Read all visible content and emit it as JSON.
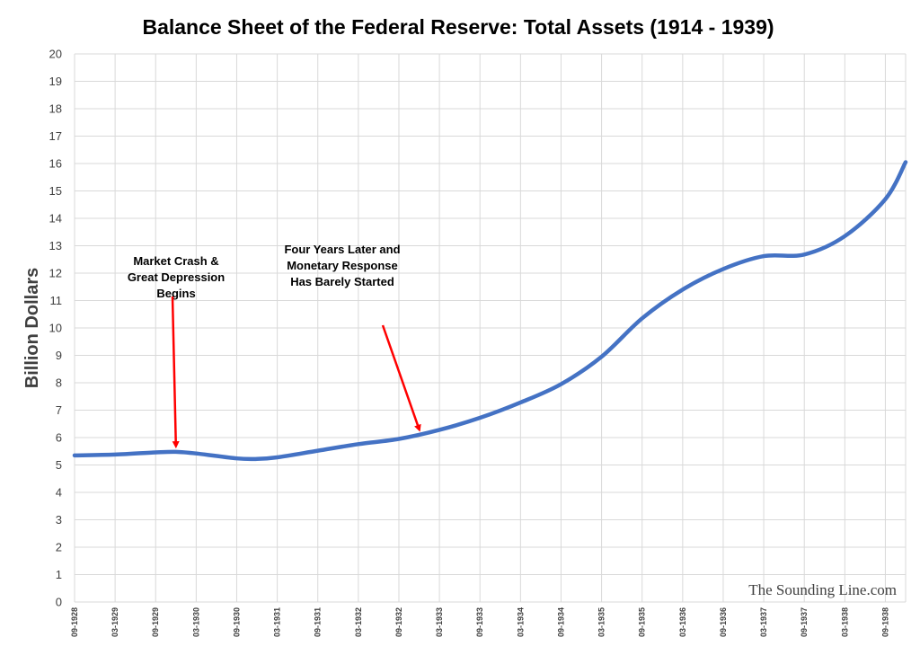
{
  "chart_data": {
    "type": "line",
    "title": "Balance Sheet of the Federal Reserve: Total Assets (1914 - 1939)",
    "xlabel": "",
    "ylabel": "Billion Dollars",
    "ylim": [
      0,
      20
    ],
    "yticks": [
      0,
      1,
      2,
      3,
      4,
      5,
      6,
      7,
      8,
      9,
      10,
      11,
      12,
      13,
      14,
      15,
      16,
      17,
      18,
      19,
      20
    ],
    "grid": true,
    "categories": [
      "09-1928",
      "03-1929",
      "09-1929",
      "03-1930",
      "09-1930",
      "03-1931",
      "09-1931",
      "03-1932",
      "09-1932",
      "03-1933",
      "09-1933",
      "03-1934",
      "09-1934",
      "03-1935",
      "09-1935",
      "03-1936",
      "09-1936",
      "03-1937",
      "09-1937",
      "03-1938",
      "09-1938"
    ],
    "x_end": "12-1938",
    "series": [
      {
        "color": "#4472c4",
        "points": [
          {
            "x": "09-1928",
            "y": 5.35
          },
          {
            "x": "03-1929",
            "y": 5.38
          },
          {
            "x": "09-1929",
            "y": 5.46
          },
          {
            "x": "12-1929",
            "y": 5.48
          },
          {
            "x": "03-1930",
            "y": 5.42
          },
          {
            "x": "09-1930",
            "y": 5.24
          },
          {
            "x": "12-1930",
            "y": 5.22
          },
          {
            "x": "03-1931",
            "y": 5.28
          },
          {
            "x": "09-1931",
            "y": 5.52
          },
          {
            "x": "03-1932",
            "y": 5.76
          },
          {
            "x": "09-1932",
            "y": 5.95
          },
          {
            "x": "03-1933",
            "y": 6.28
          },
          {
            "x": "09-1933",
            "y": 6.72
          },
          {
            "x": "03-1934",
            "y": 7.28
          },
          {
            "x": "09-1934",
            "y": 7.95
          },
          {
            "x": "03-1935",
            "y": 8.95
          },
          {
            "x": "09-1935",
            "y": 10.35
          },
          {
            "x": "03-1936",
            "y": 11.4
          },
          {
            "x": "09-1936",
            "y": 12.15
          },
          {
            "x": "03-1937",
            "y": 12.62
          },
          {
            "x": "09-1937",
            "y": 12.68
          },
          {
            "x": "03-1938",
            "y": 13.35
          },
          {
            "x": "09-1938",
            "y": 14.7
          },
          {
            "x": "12-1938",
            "y": 16.05
          }
        ]
      }
    ],
    "annotations": [
      {
        "lines": [
          "Market Crash &",
          "Great Depression",
          "Begins"
        ],
        "arrow_to": {
          "x": "12-1929",
          "y": 5.7
        }
      },
      {
        "lines": [
          "Four Years Later and",
          "Monetary Response",
          "Has Barely Started"
        ],
        "arrow_to": {
          "x": "12-1932",
          "y": 6.3
        }
      }
    ]
  },
  "watermark": "The Sounding Line.com",
  "colors": {
    "series": "#4472c4",
    "arrow": "#ff0000",
    "grid": "#d9d9d9"
  }
}
